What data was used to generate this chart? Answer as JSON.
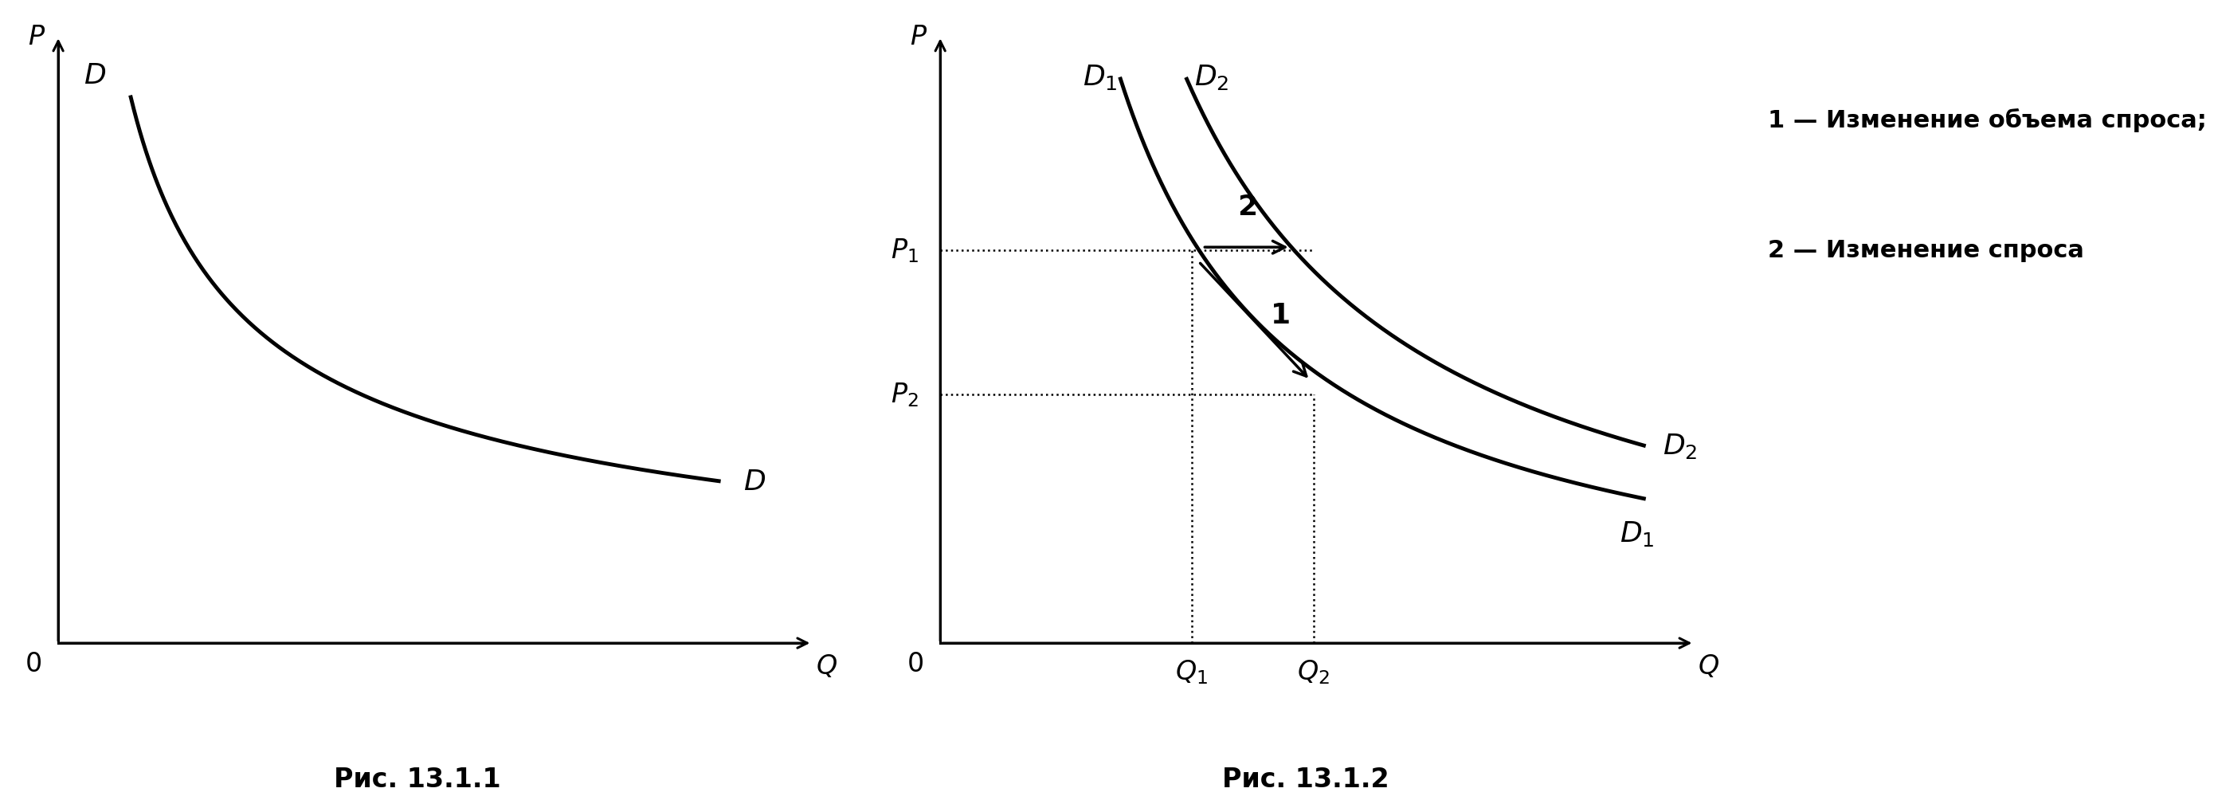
{
  "fig_width": 26.36,
  "fig_height": 10.88,
  "background_color": "#ffffff",
  "curve_color": "#000000",
  "curve_linewidth": 3.5,
  "axis_linewidth": 2.2,
  "dotted_linewidth": 1.8,
  "label_fontsize": 24,
  "italic_fontsize": 26,
  "caption_fontsize": 24,
  "legend_fontsize": 22,
  "fig1_caption": "Рис. 13.1.1",
  "fig2_caption": "Рис. 13.1.2",
  "legend_line1": "1 — Изменение объема спроса;",
  "legend_line2": "2 — Изменение спроса",
  "Q1": 3.5,
  "Q2": 5.2,
  "P1": 6.8,
  "P2": 4.3,
  "xmax": 10,
  "ymax": 10,
  "k1": 24.5,
  "k2": 33.5
}
